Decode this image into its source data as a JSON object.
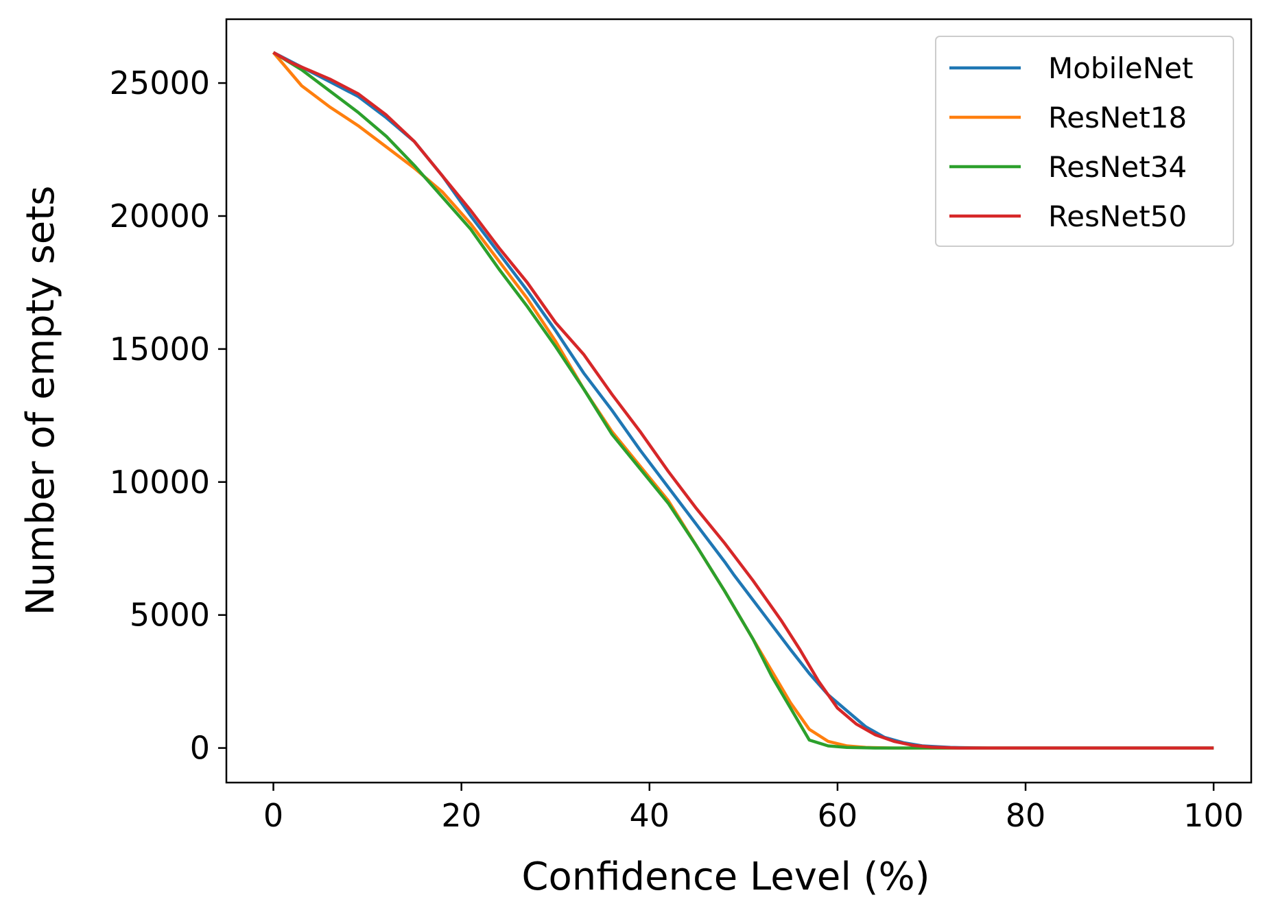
{
  "chart_data": {
    "type": "line",
    "xlabel": "Confidence Level (%)",
    "ylabel": "Number of empty sets",
    "xlim": [
      -5,
      104
    ],
    "ylim": [
      -1300,
      27400
    ],
    "x_ticks": [
      0,
      20,
      40,
      60,
      80,
      100
    ],
    "y_ticks": [
      0,
      5000,
      10000,
      15000,
      20000,
      25000
    ],
    "grid": false,
    "legend_position": "top-right",
    "series": [
      {
        "name": "MobileNet",
        "color": "#1f77b4",
        "points": [
          [
            0,
            26150
          ],
          [
            3,
            25600
          ],
          [
            6,
            25050
          ],
          [
            9,
            24500
          ],
          [
            12,
            23700
          ],
          [
            15,
            22800
          ],
          [
            18,
            21500
          ],
          [
            21,
            20000
          ],
          [
            24,
            18600
          ],
          [
            27,
            17200
          ],
          [
            30,
            15700
          ],
          [
            33,
            14100
          ],
          [
            36,
            12700
          ],
          [
            39,
            11200
          ],
          [
            42,
            9800
          ],
          [
            45,
            8400
          ],
          [
            48,
            7000
          ],
          [
            49,
            6500
          ],
          [
            52,
            5100
          ],
          [
            55,
            3700
          ],
          [
            57,
            2800
          ],
          [
            59,
            2000
          ],
          [
            61,
            1400
          ],
          [
            63,
            800
          ],
          [
            65,
            400
          ],
          [
            67,
            200
          ],
          [
            69,
            80
          ],
          [
            72,
            20
          ],
          [
            76,
            0
          ],
          [
            100,
            0
          ]
        ]
      },
      {
        "name": "ResNet18",
        "color": "#ff7f0e",
        "points": [
          [
            0,
            26150
          ],
          [
            3,
            24900
          ],
          [
            6,
            24100
          ],
          [
            9,
            23400
          ],
          [
            12,
            22600
          ],
          [
            15,
            21800
          ],
          [
            18,
            20900
          ],
          [
            21,
            19700
          ],
          [
            24,
            18300
          ],
          [
            27,
            16900
          ],
          [
            30,
            15300
          ],
          [
            33,
            13500
          ],
          [
            36,
            11900
          ],
          [
            39,
            10600
          ],
          [
            42,
            9300
          ],
          [
            45,
            7600
          ],
          [
            48,
            5900
          ],
          [
            51,
            4100
          ],
          [
            53,
            2900
          ],
          [
            55,
            1700
          ],
          [
            57,
            700
          ],
          [
            59,
            250
          ],
          [
            61,
            80
          ],
          [
            63,
            20
          ],
          [
            66,
            0
          ],
          [
            100,
            0
          ]
        ]
      },
      {
        "name": "ResNet34",
        "color": "#2ca02c",
        "points": [
          [
            0,
            26150
          ],
          [
            3,
            25500
          ],
          [
            6,
            24700
          ],
          [
            9,
            23900
          ],
          [
            12,
            23000
          ],
          [
            15,
            21900
          ],
          [
            18,
            20700
          ],
          [
            21,
            19500
          ],
          [
            24,
            18000
          ],
          [
            27,
            16600
          ],
          [
            30,
            15100
          ],
          [
            33,
            13500
          ],
          [
            36,
            11800
          ],
          [
            39,
            10500
          ],
          [
            42,
            9200
          ],
          [
            45,
            7600
          ],
          [
            48,
            5900
          ],
          [
            51,
            4100
          ],
          [
            53,
            2700
          ],
          [
            55,
            1500
          ],
          [
            57,
            300
          ],
          [
            59,
            80
          ],
          [
            61,
            20
          ],
          [
            64,
            0
          ],
          [
            100,
            0
          ]
        ]
      },
      {
        "name": "ResNet50",
        "color": "#d62728",
        "points": [
          [
            0,
            26150
          ],
          [
            2,
            25750
          ],
          [
            4,
            25450
          ],
          [
            6,
            25150
          ],
          [
            9,
            24600
          ],
          [
            12,
            23800
          ],
          [
            15,
            22800
          ],
          [
            18,
            21500
          ],
          [
            21,
            20200
          ],
          [
            24,
            18800
          ],
          [
            27,
            17500
          ],
          [
            30,
            16000
          ],
          [
            33,
            14800
          ],
          [
            36,
            13300
          ],
          [
            39,
            11900
          ],
          [
            42,
            10400
          ],
          [
            45,
            9000
          ],
          [
            48,
            7700
          ],
          [
            51,
            6300
          ],
          [
            54,
            4800
          ],
          [
            56,
            3700
          ],
          [
            58,
            2500
          ],
          [
            60,
            1500
          ],
          [
            62,
            900
          ],
          [
            64,
            500
          ],
          [
            66,
            250
          ],
          [
            68,
            100
          ],
          [
            70,
            30
          ],
          [
            73,
            0
          ],
          [
            100,
            0
          ]
        ]
      }
    ]
  }
}
